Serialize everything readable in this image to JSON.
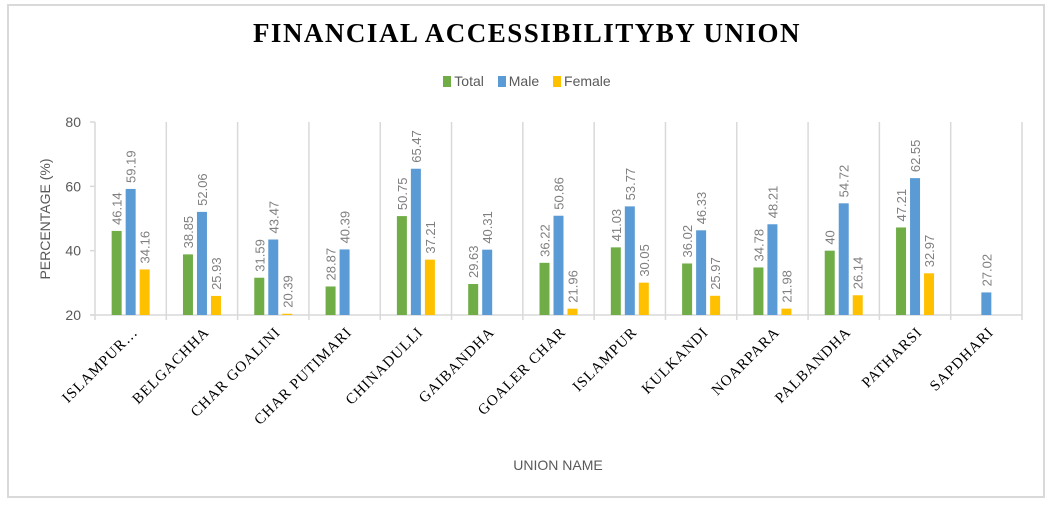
{
  "chart_data": {
    "type": "bar",
    "title": "FINANCIAL ACCESSIBILITYBY UNION",
    "xlabel": "UNION NAME",
    "ylabel": "PERCENTAGE (%)",
    "ylim": [
      20,
      80
    ],
    "yticks": [
      "20",
      "40",
      "60",
      "80"
    ],
    "grid": "vertical category separators",
    "legend_position": "top",
    "categories": [
      "ISLAMPUR…",
      "BELGACHHA",
      "CHAR GOALINI",
      "CHAR PUTIMARI",
      "CHINADULLI",
      "GAIBANDHA",
      "GOALER CHAR",
      "ISLAMPUR",
      "KULKANDI",
      "NOARPARA",
      "PALBANDHA",
      "PATHARSI",
      "SAPDHARI"
    ],
    "series": [
      {
        "name": "Total",
        "color": "#70ad47",
        "values": [
          46.14,
          38.85,
          31.59,
          28.87,
          50.75,
          29.63,
          36.22,
          41.03,
          36.02,
          34.78,
          40,
          47.21,
          null
        ],
        "labels": [
          "46.14",
          "38.85",
          "31.59",
          "28.87",
          "50.75",
          "29.63",
          "36.22",
          "41.03",
          "36.02",
          "34.78",
          "40",
          "47.21",
          null
        ]
      },
      {
        "name": "Male",
        "color": "#5b9bd5",
        "values": [
          59.19,
          52.06,
          43.47,
          40.39,
          65.47,
          40.31,
          50.86,
          53.77,
          46.33,
          48.21,
          54.72,
          62.55,
          27.02
        ],
        "labels": [
          "59.19",
          "52.06",
          "43.47",
          "40.39",
          "65.47",
          "40.31",
          "50.86",
          "53.77",
          "46.33",
          "48.21",
          "54.72",
          "62.55",
          "27.02"
        ]
      },
      {
        "name": "Female",
        "color": "#ffc000",
        "values": [
          34.16,
          25.93,
          20.39,
          null,
          37.21,
          null,
          21.96,
          30.05,
          25.97,
          21.98,
          26.14,
          32.97,
          null
        ],
        "labels": [
          "34.16",
          "25.93",
          "20.39",
          null,
          "37.21",
          null,
          "21.96",
          "30.05",
          "25.97",
          "21.98",
          "26.14",
          "32.97",
          null
        ]
      }
    ]
  }
}
